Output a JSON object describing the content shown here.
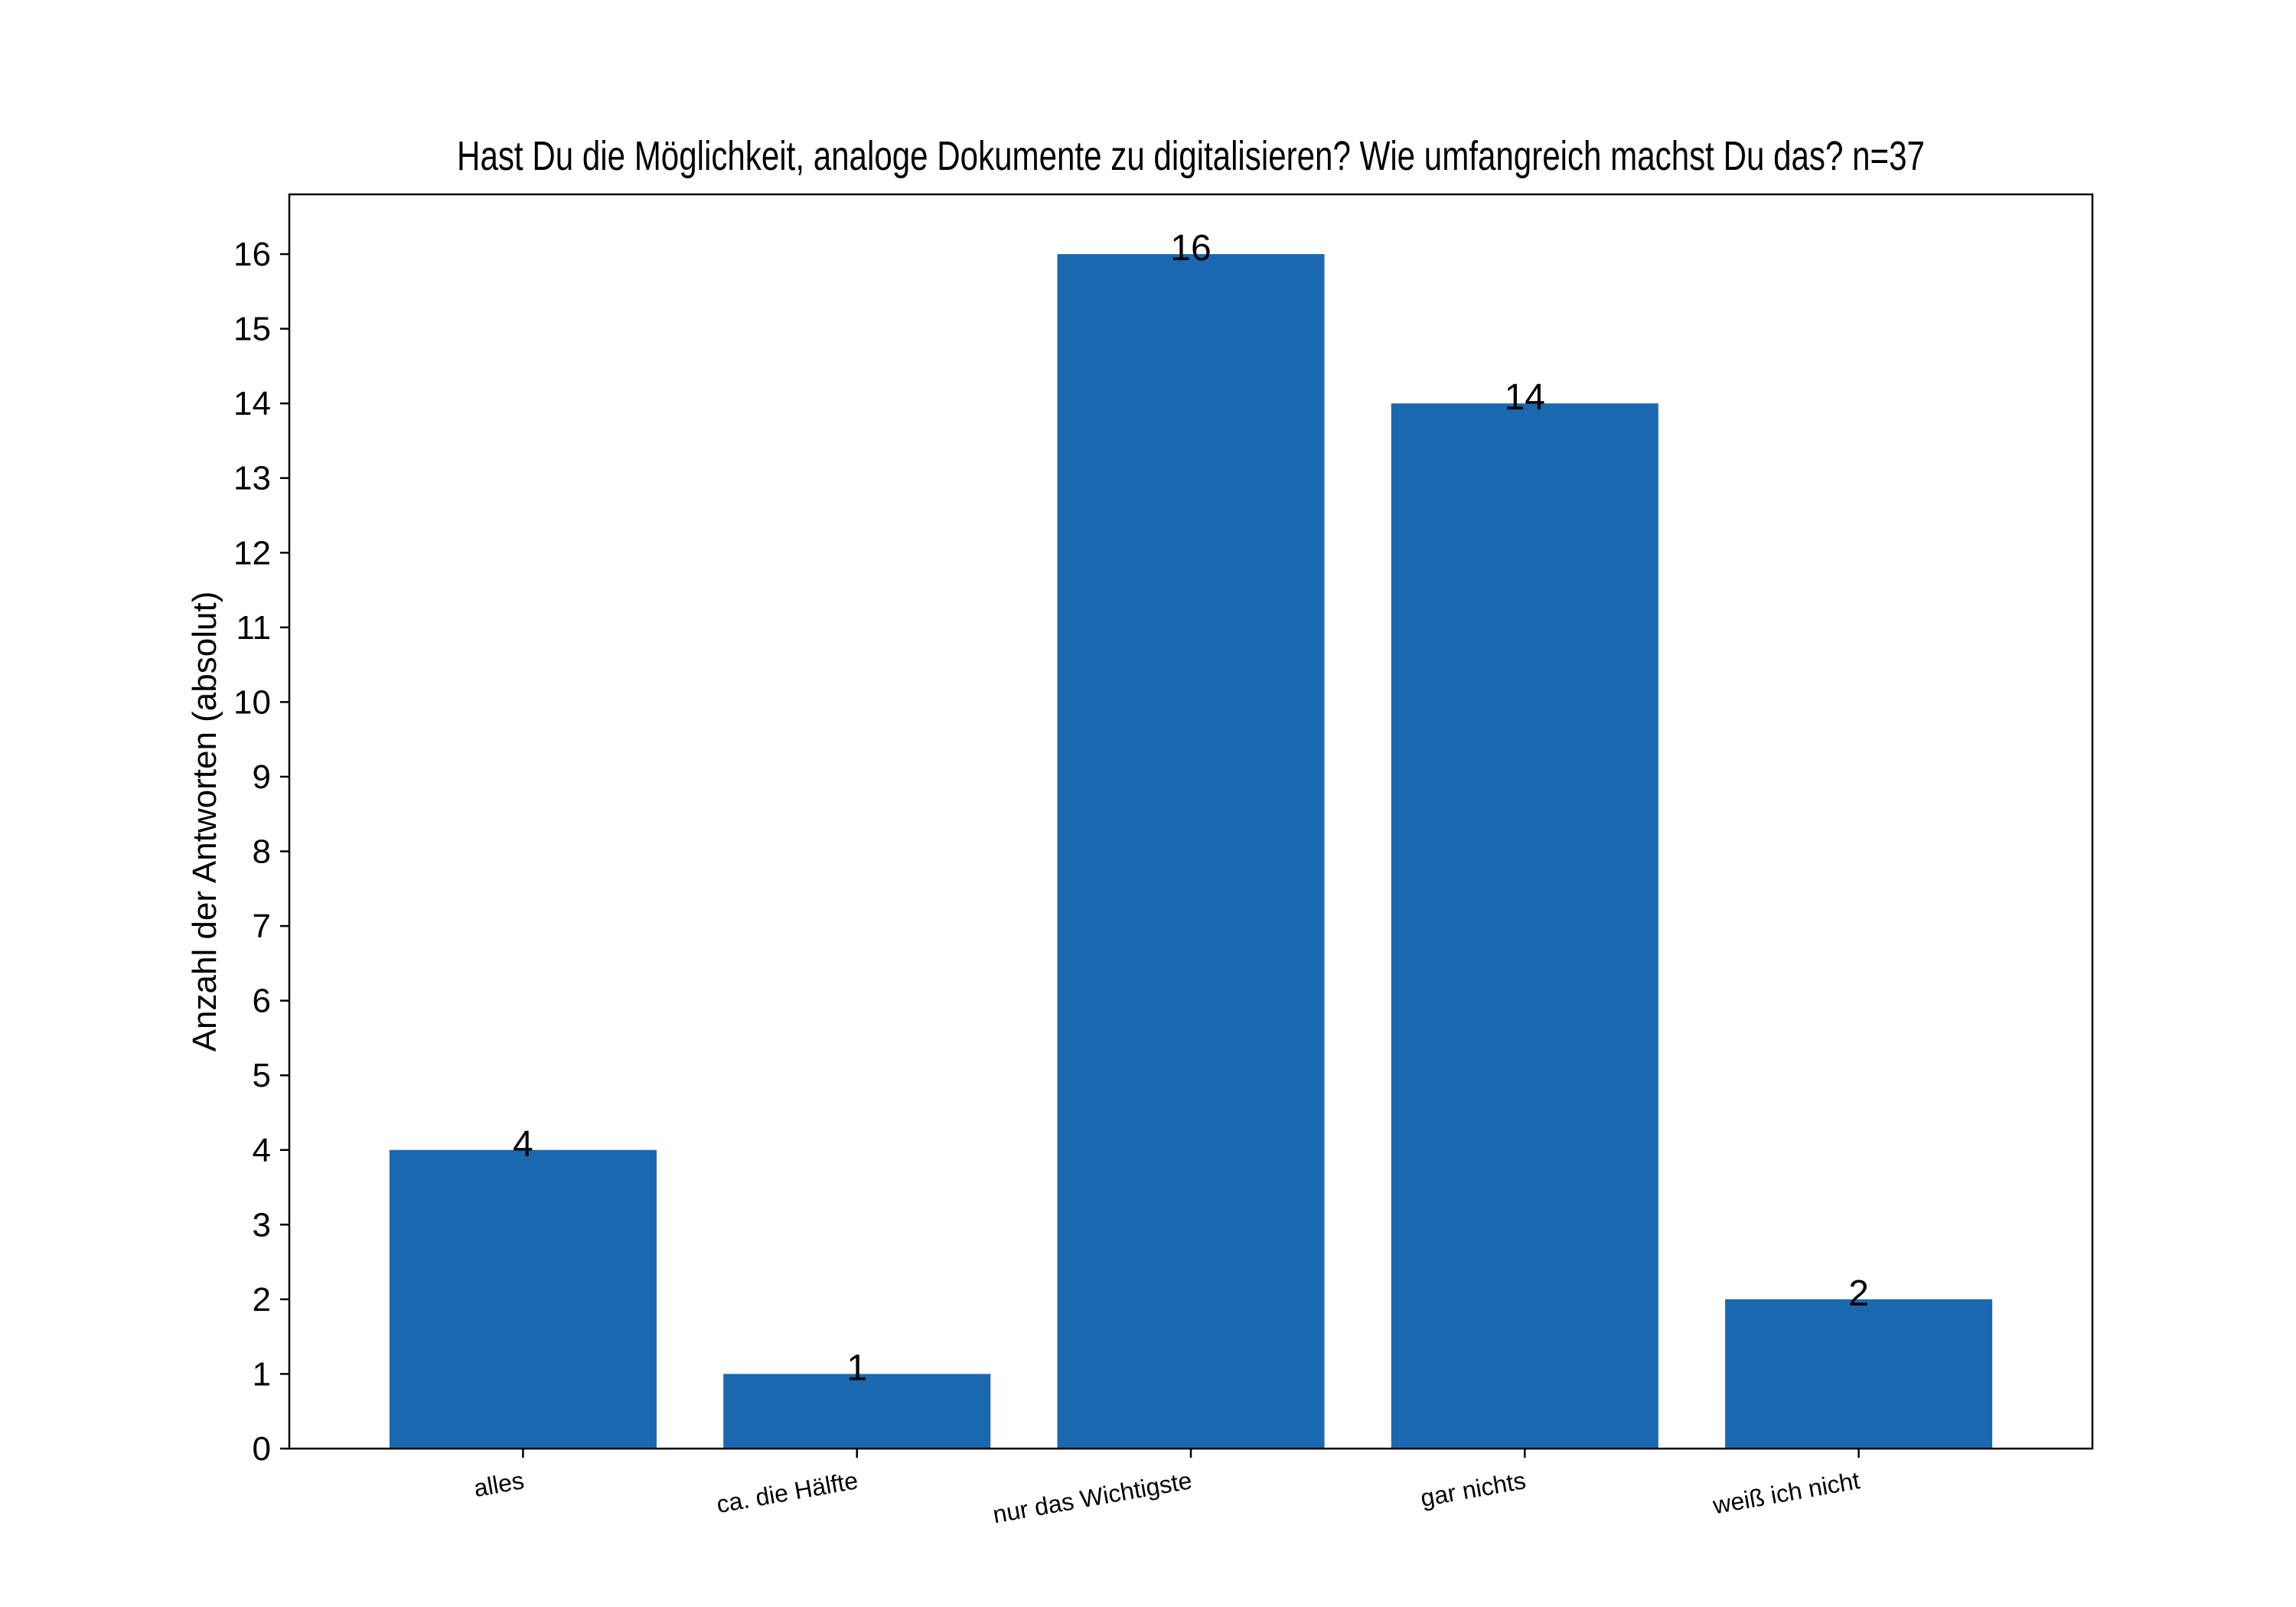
{
  "chart_data": {
    "type": "bar",
    "title": "Hast Du die Möglichkeit, analoge Dokumente zu digitalisieren? Wie umfangreich machst Du das? n=37",
    "xlabel": "",
    "ylabel": "Anzahl der Antworten (absolut)",
    "categories": [
      "alles",
      "ca. die Hälfte",
      "nur das Wichtigste",
      "gar nichts",
      "weiß ich nicht"
    ],
    "values": [
      4,
      1,
      16,
      14,
      2
    ],
    "ylim": [
      0,
      16.8
    ],
    "yticks": [
      0,
      1,
      2,
      3,
      4,
      5,
      6,
      7,
      8,
      9,
      10,
      11,
      12,
      13,
      14,
      15,
      16
    ],
    "bar_color": "#1a68b0",
    "grid": false,
    "legend": "none",
    "data_labels": true
  }
}
